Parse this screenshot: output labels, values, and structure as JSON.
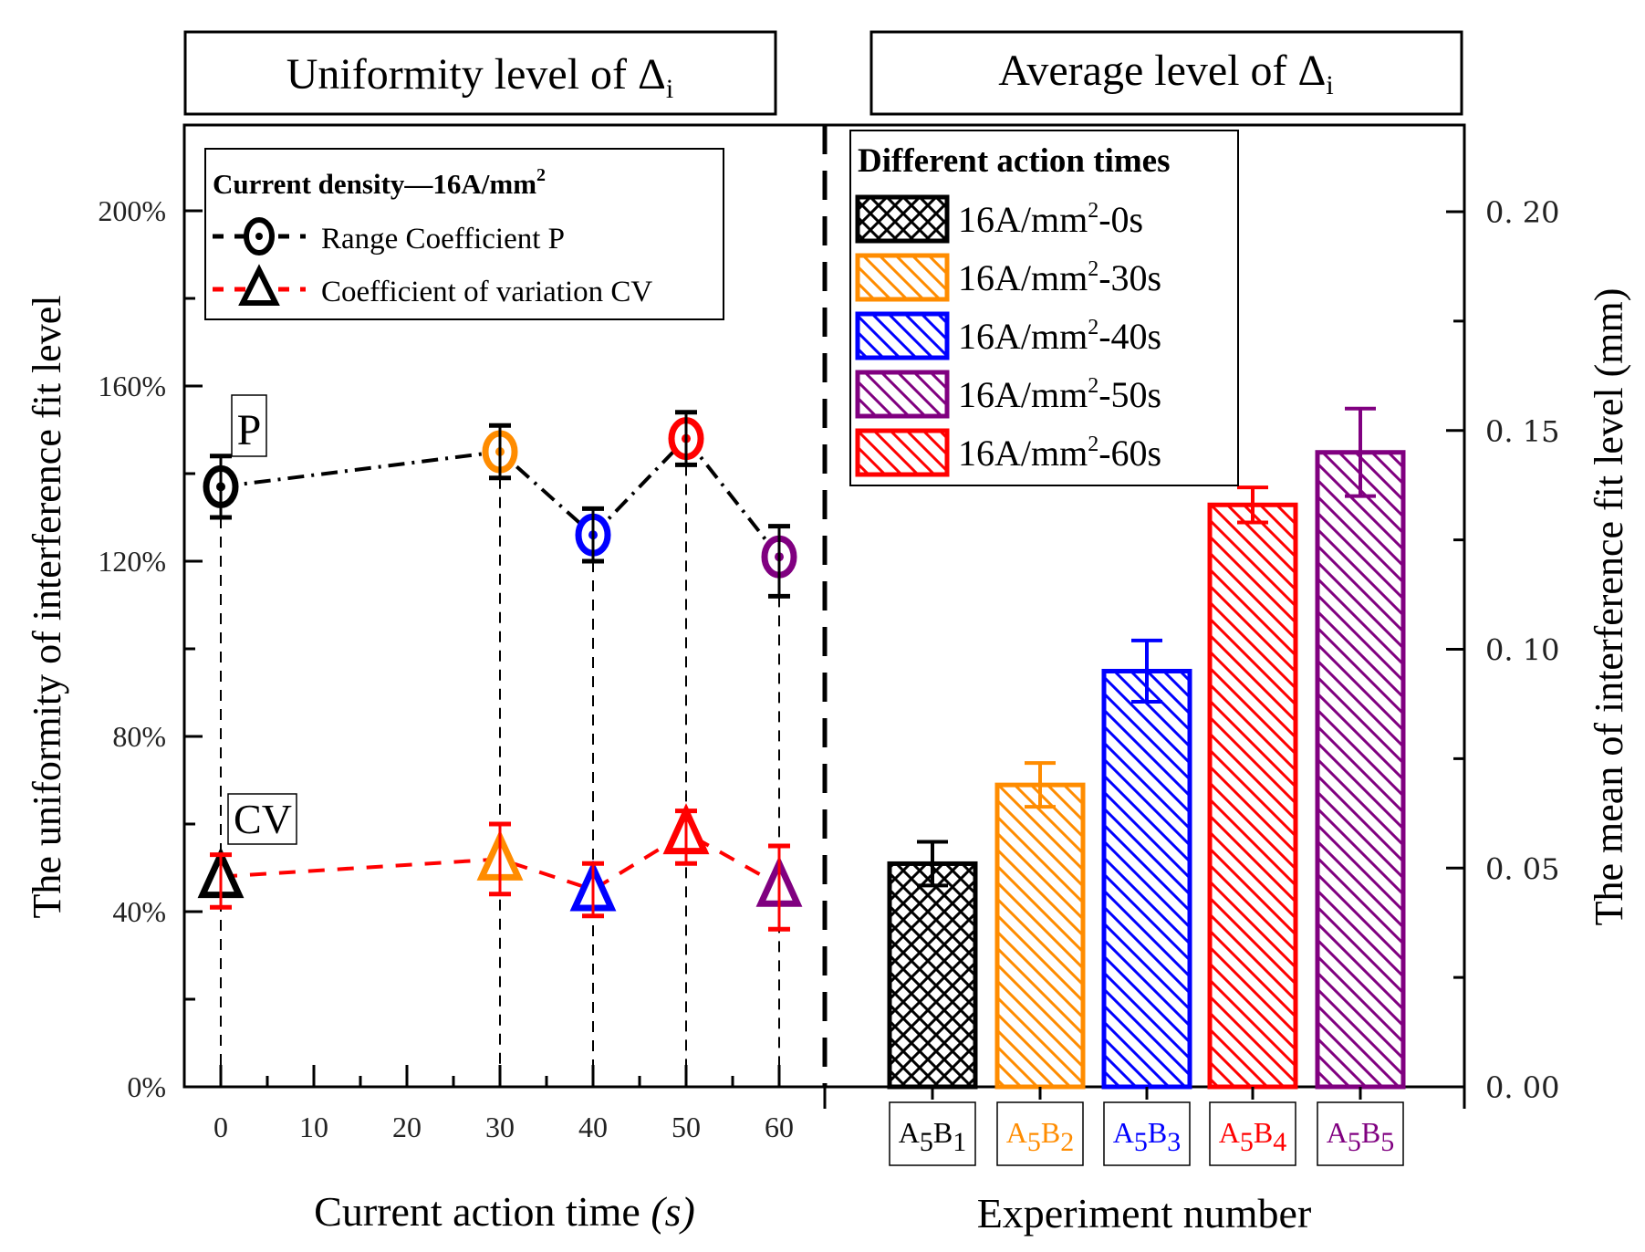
{
  "panel_titles": {
    "left": {
      "text": "Uniformity level of Δ",
      "sub": "i"
    },
    "right": {
      "text": "Average level of Δ",
      "sub": "i"
    }
  },
  "colors": {
    "black": "#000000",
    "orange": "#FF8C00",
    "blue": "#0000FF",
    "red": "#FF0000",
    "purple": "#800080"
  },
  "chart_data": [
    {
      "type": "line",
      "title": "Uniformity level of Δi",
      "xlabel": "Current action time",
      "xlabel_unit": "(s)",
      "ylabel": "The uniformity of interference fit level",
      "xlim": [
        -4,
        65
      ],
      "ylim": [
        0,
        220
      ],
      "xticks": [
        0,
        10,
        20,
        30,
        40,
        50,
        60
      ],
      "yticks": [
        0,
        40,
        80,
        120,
        160,
        200
      ],
      "ytick_labels": [
        "0%",
        "40%",
        "80%",
        "120%",
        "160%",
        "200%"
      ],
      "legend": {
        "title": "Current density—16A/mm",
        "title_sup": "2",
        "placement": "top-left",
        "entries": [
          "Range Coefficient P",
          "Coefficient of variation CV"
        ]
      },
      "annotations": [
        "P",
        "CV"
      ],
      "x": [
        0,
        30,
        40,
        50,
        60
      ],
      "point_colors": [
        "#000000",
        "#FF8C00",
        "#0000FF",
        "#FF0000",
        "#800080"
      ],
      "series": [
        {
          "name": "Range Coefficient P",
          "line_color": "#000000",
          "marker": "circle-dot",
          "values": [
            137,
            145,
            126,
            148,
            121
          ],
          "err_low": [
            130,
            139,
            120,
            142,
            112
          ],
          "err_high": [
            144,
            151,
            132,
            154,
            128
          ]
        },
        {
          "name": "Coefficient of variation CV",
          "line_color": "#FF0000",
          "marker": "triangle",
          "values": [
            48,
            52,
            45,
            58,
            46
          ],
          "err_low": [
            41,
            44,
            39,
            51,
            36
          ],
          "err_high": [
            53,
            60,
            51,
            63,
            55
          ]
        }
      ]
    },
    {
      "type": "bar",
      "title": "Average level of Δi",
      "xlabel": "Experiment number",
      "ylabel": "The mean of interference fit level (mm)",
      "ylim": [
        0,
        0.22
      ],
      "yticks": [
        0,
        0.05,
        0.1,
        0.15,
        0.2
      ],
      "ytick_labels": [
        "0. 00",
        "0. 05",
        "0. 10",
        "0. 15",
        "0. 20"
      ],
      "categories": [
        [
          "A",
          "5",
          "B",
          "1"
        ],
        [
          "A",
          "5",
          "B",
          "2"
        ],
        [
          "A",
          "5",
          "B",
          "3"
        ],
        [
          "A",
          "5",
          "B",
          "4"
        ],
        [
          "A",
          "5",
          "B",
          "5"
        ]
      ],
      "bar_colors": [
        "#000000",
        "#FF8C00",
        "#0000FF",
        "#FF0000",
        "#800080"
      ],
      "values": [
        0.051,
        0.069,
        0.095,
        0.133,
        0.145
      ],
      "err": [
        0.005,
        0.005,
        0.007,
        0.004,
        0.01
      ],
      "legend": {
        "title": "Different action times",
        "placement": "top-left",
        "entries": [
          {
            "pre": "16A/mm",
            "sup": "2",
            "post": "-0s",
            "color": "#000000",
            "pattern": "cross"
          },
          {
            "pre": "16A/mm",
            "sup": "2",
            "post": "-30s",
            "color": "#FF8C00",
            "pattern": "diag"
          },
          {
            "pre": "16A/mm",
            "sup": "2",
            "post": "-40s",
            "color": "#0000FF",
            "pattern": "diag"
          },
          {
            "pre": "16A/mm",
            "sup": "2",
            "post": "-50s",
            "color": "#800080",
            "pattern": "diag"
          },
          {
            "pre": "16A/mm",
            "sup": "2",
            "post": "-60s",
            "color": "#FF0000",
            "pattern": "diag"
          }
        ]
      }
    }
  ]
}
